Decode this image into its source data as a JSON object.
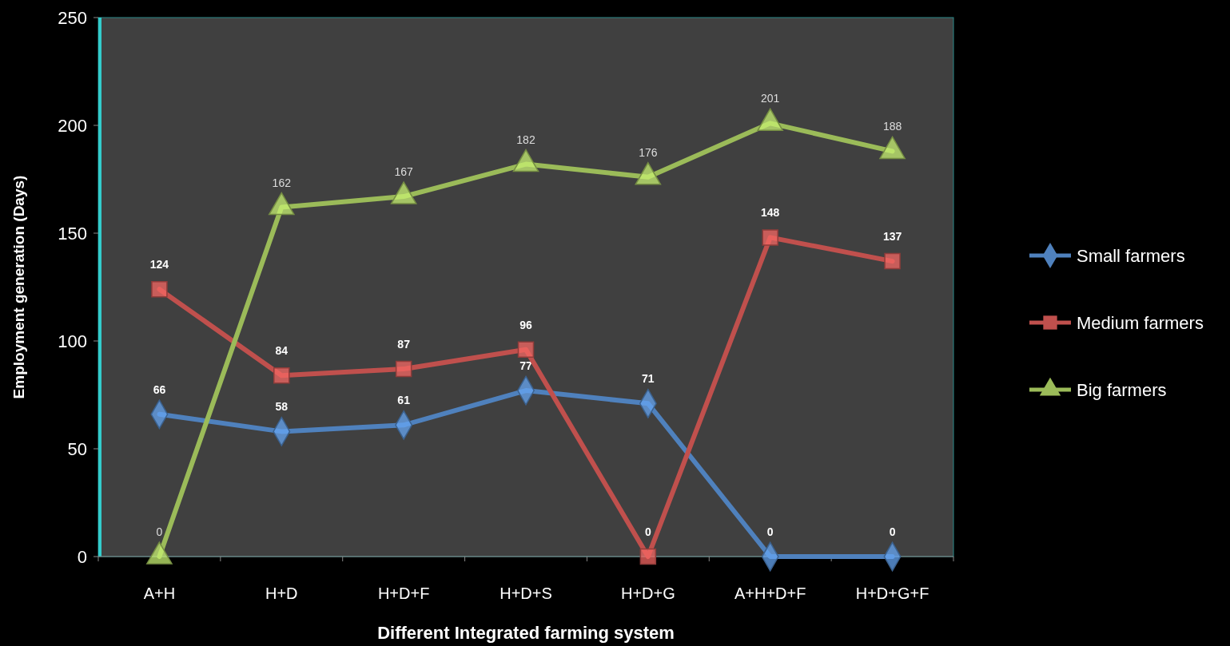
{
  "chart_data": {
    "type": "line",
    "xlabel": "Different Integrated farming system",
    "ylabel": "Employment generation (Days)",
    "categories": [
      "A+H",
      "H+D",
      "H+D+F",
      "H+D+S",
      "H+D+G",
      "A+H+D+F",
      "H+D+G+F"
    ],
    "series": [
      {
        "name": "Small farmers",
        "color": "#4f81bd",
        "marker": "diamond",
        "values": [
          66,
          58,
          61,
          77,
          71,
          0,
          0
        ]
      },
      {
        "name": "Medium farmers",
        "color": "#c0504d",
        "marker": "square",
        "values": [
          124,
          84,
          87,
          96,
          0,
          148,
          137
        ]
      },
      {
        "name": "Big farmers",
        "color": "#9bbb59",
        "marker": "triangle",
        "values": [
          0,
          162,
          167,
          182,
          176,
          201,
          188
        ]
      }
    ],
    "ylim": [
      0,
      250
    ],
    "yticks": [
      0,
      50,
      100,
      150,
      200,
      250
    ],
    "grid": false,
    "legend": "right",
    "data_labels": true,
    "line_style": "solid"
  }
}
